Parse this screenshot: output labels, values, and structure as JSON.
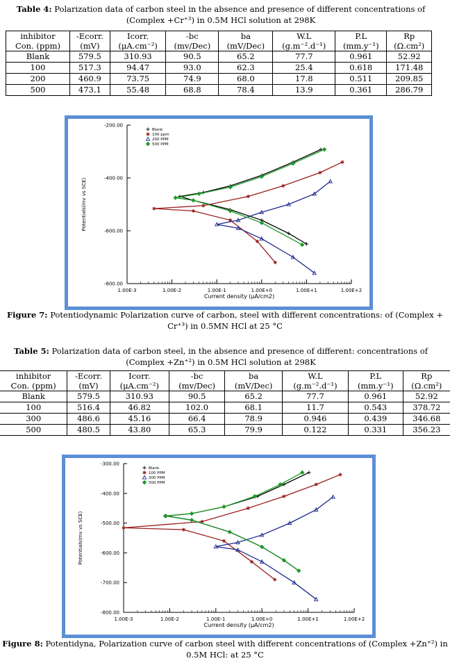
{
  "tables": [
    {
      "caption_label": "Table 4:",
      "caption": "Polarization data of carbon steel in the absence and presence of different concentrations of (Complex +Cr⁺³) in 0.5M HCl solution at 298K",
      "header": [
        [
          "inhibitor",
          "Con. (ppm)"
        ],
        [
          "-Ecorr.",
          "(mV)"
        ],
        [
          "Icorr.",
          "(μA.cm⁻²)"
        ],
        [
          "-bc",
          "(mv/Dec)"
        ],
        [
          "ba",
          "(mV/Dec)"
        ],
        [
          "W.L",
          "(g.m⁻².d⁻¹)"
        ],
        [
          "P.L",
          "(mm.y⁻¹)"
        ],
        [
          "Rp",
          "(Ω.cm²)"
        ]
      ],
      "rows": [
        [
          "Blank",
          "579.5",
          "310.93",
          "90.5",
          "65.2",
          "77.7",
          "0.961",
          "52.92"
        ],
        [
          "100",
          "517.3",
          "94.47",
          "93.0",
          "62.3",
          "25.4",
          "0.618",
          "171.48"
        ],
        [
          "200",
          "460.9",
          "73.75",
          "74.9",
          "68.0",
          "17.8",
          "0.511",
          "209.85"
        ],
        [
          "500",
          "473.1",
          "55.48",
          "68.8",
          "78.4",
          "13.9",
          "0.361",
          "286.79"
        ]
      ]
    },
    {
      "caption_label": "Table 5:",
      "caption": "Polarization data of carbon steel, in the absence and presence of different: concentrations of (Complex +Zn⁺²) in 0.5M HCl solution at 298K",
      "header": [
        [
          "inhibitor",
          "Con. (ppm)"
        ],
        [
          "-Ecorr.",
          "(mV)"
        ],
        [
          "Icorr.",
          "(μA.cm⁻²)"
        ],
        [
          "-bc",
          "(mv/Dec)"
        ],
        [
          "ba",
          "(mV/Dec)"
        ],
        [
          "W.L",
          "(g.m⁻².d⁻¹)"
        ],
        [
          "P.L",
          "(mm.y⁻¹)"
        ],
        [
          "Rp",
          "(Ω.cm²)"
        ]
      ],
      "rows": [
        [
          "Blank",
          "579.5",
          "310.93",
          "90.5",
          "65.2",
          "77.7",
          "0.961",
          "52.92"
        ],
        [
          "100",
          "516.4",
          "46.82",
          "102.0",
          "68.1",
          "11.7",
          "0.543",
          "378.72"
        ],
        [
          "300",
          "486.6",
          "45.16",
          "66.4",
          "78.9",
          "0.946",
          "0.439",
          "346.68"
        ],
        [
          "500",
          "480.5",
          "43.80",
          "65.3",
          "79.9",
          "0.122",
          "0.331",
          "356.23"
        ]
      ]
    }
  ],
  "figures": [
    {
      "caption_label": "Figure 7:",
      "caption": "Potentiodynamic Polarization curve of carbon, steel with different concentrations: of (Complex + Cr⁺³) in 0.5MN HCl at 25 °C"
    },
    {
      "caption_label": "Figure 8:",
      "caption": "Potentidyna, Polarization curve of carbon steel with different concentrations of (Complex +Zn⁺²) in 0.5M HCl: at 25 °C"
    }
  ],
  "chart_data": [
    {
      "type": "line",
      "xscale": "log",
      "xlabel": "Current density (μA/cm2)",
      "ylabel": "Potentials(mv vs SCE)",
      "legend": "upper left",
      "xlim": [
        0.001,
        100
      ],
      "ylim": [
        -800,
        -200
      ],
      "xticks": [
        {
          "value": 0.001,
          "label": "1.00E-3"
        },
        {
          "value": 0.01,
          "label": "1.00E-2"
        },
        {
          "value": 0.1,
          "label": "1.00E-1"
        },
        {
          "value": 1,
          "label": "1.00E+0"
        },
        {
          "value": 10,
          "label": "1.00E+1"
        },
        {
          "value": 100,
          "label": "1.00E+2"
        }
      ],
      "yticks": [
        {
          "value": -200,
          "label": "-200.00"
        },
        {
          "value": -400,
          "label": "-400.00"
        },
        {
          "value": -600,
          "label": "-600.00"
        },
        {
          "value": -800,
          "label": "-800.00"
        }
      ],
      "series": [
        {
          "name": "Blank",
          "color": "#000000",
          "marker": "plus",
          "x": [
            21,
            5,
            1,
            0.2,
            0.05,
            0.015,
            0.03,
            0.2,
            1,
            4,
            10
          ],
          "values": [
            -292,
            -340,
            -390,
            -430,
            -455,
            -470,
            -485,
            -520,
            -560,
            -610,
            -650
          ]
        },
        {
          "name": "100 ppm",
          "color": "#9b1c1c",
          "marker": "star",
          "x": [
            63,
            20,
            3,
            0.5,
            0.05,
            0.004,
            0.03,
            0.2,
            0.8,
            2
          ],
          "values": [
            -340,
            -380,
            -430,
            -470,
            -505,
            -516,
            -525,
            -560,
            -640,
            -720
          ]
        },
        {
          "name": "200 PPM",
          "color": "#1c2a8c",
          "marker": "triangle",
          "x": [
            34,
            15,
            4,
            1,
            0.3,
            0.1,
            0.3,
            1,
            5,
            15
          ],
          "values": [
            -413,
            -460,
            -500,
            -530,
            -560,
            -576,
            -590,
            -630,
            -700,
            -760
          ]
        },
        {
          "name": "500 PPM",
          "color": "#1f9a2a",
          "marker": "diamond",
          "x": [
            25,
            5,
            1,
            0.2,
            0.04,
            0.012,
            0.03,
            0.2,
            1,
            8
          ],
          "values": [
            -292,
            -345,
            -395,
            -435,
            -460,
            -475,
            -485,
            -525,
            -570,
            -653
          ]
        }
      ]
    },
    {
      "type": "line",
      "xscale": "log",
      "xlabel": "Current density (μA/cm2)",
      "ylabel": "Potentials(mv vs SCE)",
      "legend": "upper left",
      "xlim": [
        0.001,
        100
      ],
      "ylim": [
        -800,
        -300
      ],
      "xticks": [
        {
          "value": 0.001,
          "label": "1.00E-3"
        },
        {
          "value": 0.01,
          "label": "1.00E-2"
        },
        {
          "value": 0.1,
          "label": "1.00E-1"
        },
        {
          "value": 1,
          "label": "1.00E+0"
        },
        {
          "value": 10,
          "label": "1.00E+1"
        },
        {
          "value": 100,
          "label": "1.00E+2"
        }
      ],
      "yticks": [
        {
          "value": -300,
          "label": "-300.00"
        },
        {
          "value": -400,
          "label": "-400.00"
        },
        {
          "value": -500,
          "label": "-500.00"
        },
        {
          "value": -600,
          "label": "-600.00"
        },
        {
          "value": -700,
          "label": "-700.00"
        },
        {
          "value": -800,
          "label": "-800.00"
        }
      ],
      "series": [
        {
          "name": "Blank",
          "color": "#000000",
          "marker": "plus",
          "x": [
            10.5,
            3,
            0.8,
            0.15,
            0.03,
            0.0085,
            0.03,
            0.2,
            1,
            3,
            6.3
          ],
          "values": [
            -330,
            -370,
            -410,
            -445,
            -468,
            -476,
            -490,
            -530,
            -580,
            -625,
            -660
          ]
        },
        {
          "name": "100 PPM",
          "color": "#9b1c1c",
          "marker": "star",
          "x": [
            50,
            15,
            3,
            0.5,
            0.05,
            0.001,
            0.02,
            0.15,
            0.6,
            1.9
          ],
          "values": [
            -337,
            -370,
            -410,
            -450,
            -495,
            -516,
            -522,
            -560,
            -630,
            -690
          ]
        },
        {
          "name": "300 PPM",
          "color": "#1c2a8c",
          "marker": "triangle",
          "x": [
            35,
            15,
            4,
            1,
            0.3,
            0.1,
            0.3,
            1,
            5,
            15
          ],
          "values": [
            -412,
            -455,
            -500,
            -540,
            -565,
            -579,
            -590,
            -630,
            -700,
            -756
          ]
        },
        {
          "name": "500 PPM",
          "color": "#1f9a2a",
          "marker": "diamond",
          "x": [
            7.5,
            2.5,
            0.7,
            0.15,
            0.03,
            0.008,
            0.03,
            0.2,
            1,
            3,
            6.3
          ],
          "values": [
            -330,
            -370,
            -410,
            -445,
            -468,
            -476,
            -490,
            -530,
            -580,
            -625,
            -660
          ]
        }
      ]
    }
  ]
}
